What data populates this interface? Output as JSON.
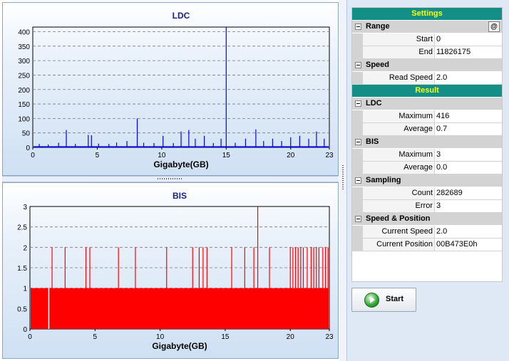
{
  "chart_data": [
    {
      "type": "bar",
      "title": "LDC",
      "xlabel": "Gigabyte(GB)",
      "ylabel": "",
      "xlim": [
        0,
        23
      ],
      "ylim": [
        0,
        416
      ],
      "xticks": [
        "0",
        "5",
        "10",
        "15",
        "20",
        "23"
      ],
      "yticks": [
        "0",
        "50",
        "100",
        "150",
        "200",
        "250",
        "300",
        "350",
        "400"
      ],
      "grid": true,
      "color": "#0000ff",
      "baseline": 4,
      "x": [
        0.5,
        1.2,
        2.0,
        2.6,
        3.3,
        4.3,
        4.55,
        5.1,
        5.9,
        6.5,
        7.3,
        8.1,
        8.6,
        9.4,
        10.1,
        10.9,
        11.5,
        12.1,
        12.6,
        13.3,
        14.0,
        14.6,
        15.0,
        15.7,
        16.5,
        17.3,
        17.9,
        18.6,
        19.3,
        20.0,
        20.7,
        21.4,
        22.0,
        22.6
      ],
      "y": [
        12,
        10,
        16,
        60,
        12,
        43,
        42,
        13,
        12,
        17,
        22,
        100,
        16,
        15,
        40,
        15,
        55,
        60,
        30,
        40,
        15,
        30,
        416,
        16,
        30,
        62,
        22,
        30,
        22,
        35,
        40,
        30,
        55,
        30
      ]
    },
    {
      "type": "bar",
      "title": "BIS",
      "xlabel": "Gigabyte(GB)",
      "ylabel": "",
      "xlim": [
        0,
        23
      ],
      "ylim": [
        0,
        3
      ],
      "xticks": [
        "0",
        "5",
        "10",
        "15",
        "20",
        "23"
      ],
      "yticks": [
        "0",
        "0.5",
        "1",
        "1.5",
        "2",
        "2.5",
        "3"
      ],
      "grid": true,
      "color": "#ff0000",
      "baseline": 1,
      "gap_x": 1.45,
      "x": [
        1.7,
        2.7,
        4.3,
        4.6,
        6.8,
        8.1,
        10.5,
        12.5,
        13.0,
        13.3,
        13.6,
        15.5,
        16.5,
        17.2,
        17.5,
        18.4,
        20.0,
        20.2,
        20.4,
        20.6,
        20.8,
        21.0,
        21.3,
        21.6,
        21.8,
        22.0,
        22.2,
        22.5,
        22.7,
        22.9
      ],
      "y": [
        2,
        2,
        2,
        2,
        2,
        2,
        2,
        2,
        2,
        2,
        2,
        2,
        2,
        2,
        3,
        2,
        2,
        2,
        2,
        2,
        2,
        2,
        2,
        2,
        2,
        2,
        2,
        2,
        2,
        2
      ]
    }
  ],
  "settings": {
    "header": "Settings",
    "range": {
      "label": "Range",
      "at_button": "@",
      "start_label": "Start",
      "start_value": "0",
      "end_label": "End",
      "end_value": "11826175"
    },
    "speed": {
      "label": "Speed",
      "read_speed_label": "Read Speed",
      "read_speed_value": "2.0"
    }
  },
  "result": {
    "header": "Result",
    "ldc": {
      "label": "LDC",
      "maximum_label": "Maximum",
      "maximum_value": "416",
      "average_label": "Average",
      "average_value": "0.7"
    },
    "bis": {
      "label": "BIS",
      "maximum_label": "Maximum",
      "maximum_value": "3",
      "average_label": "Average",
      "average_value": "0.0"
    },
    "sampling": {
      "label": "Sampling",
      "count_label": "Count",
      "count_value": "282689",
      "error_label": "Error",
      "error_value": "3"
    },
    "speed_position": {
      "label": "Speed & Position",
      "current_speed_label": "Current Speed",
      "current_speed_value": "2.0",
      "current_position_label": "Current Position",
      "current_position_value": "00B473E0h"
    }
  },
  "start_button": {
    "label": "Start",
    "icon": "play-icon"
  }
}
